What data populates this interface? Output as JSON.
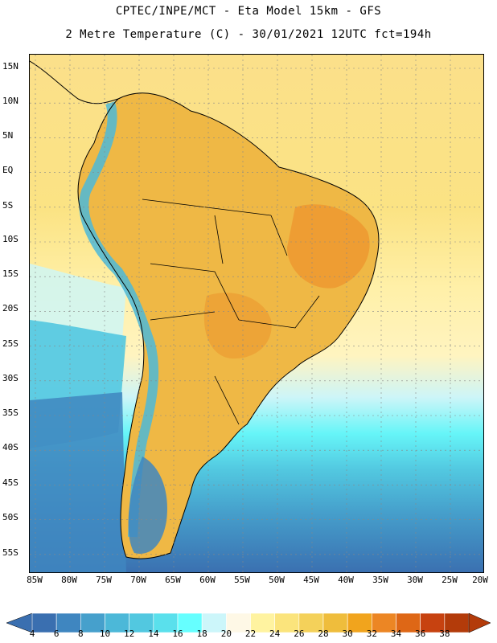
{
  "header": {
    "title_line1": "CPTEC/INPE/MCT -  Eta Model 15km - GFS",
    "title_line2": "2 Metre Temperature (C) - 30/01/2021 12UTC fct=194h"
  },
  "map": {
    "lat_labels": [
      "15N",
      "10N",
      "5N",
      "EQ",
      "5S",
      "10S",
      "15S",
      "20S",
      "25S",
      "30S",
      "35S",
      "40S",
      "45S",
      "50S",
      "55S"
    ],
    "lon_labels": [
      "85W",
      "80W",
      "75W",
      "70W",
      "65W",
      "60W",
      "55W",
      "50W",
      "45W",
      "40W",
      "35W",
      "30W",
      "25W",
      "20W"
    ],
    "region": "South America"
  },
  "colorbar": {
    "levels": [
      "4",
      "6",
      "8",
      "10",
      "12",
      "14",
      "16",
      "18",
      "20",
      "22",
      "24",
      "26",
      "28",
      "30",
      "32",
      "34",
      "36",
      "38"
    ],
    "colors": [
      "#3a6fb0",
      "#3f86c0",
      "#46a0cc",
      "#4cb8d8",
      "#52c8e0",
      "#5ae0ec",
      "#66ffff",
      "#ccf6fa",
      "#fef8e6",
      "#fff3a0",
      "#fbe47c",
      "#f4d15a",
      "#efbd3c",
      "#f1a41d",
      "#ec8624",
      "#de6716",
      "#c74210",
      "#b33b0a"
    ]
  }
}
